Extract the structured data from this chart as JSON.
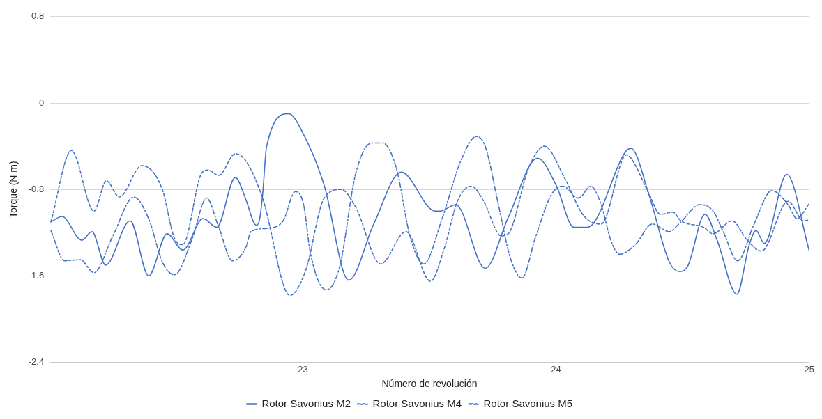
{
  "chart_data": {
    "type": "line",
    "xlabel": "Número de revolución",
    "ylabel": "Torque (N m)",
    "xlim": [
      22,
      25
    ],
    "xticks": [
      23,
      24,
      25
    ],
    "ylim": [
      -2.4,
      0.8
    ],
    "yticks": [
      0.8,
      0,
      -0.8,
      -1.6,
      -2.4
    ],
    "grid": true,
    "legend": "bottom",
    "marker": "none",
    "series": [
      {
        "name": "Rotor Savonius M2",
        "color": "#4472c4",
        "line_style": "solid",
        "x": [
          22.005,
          22.049,
          22.127,
          22.167,
          22.221,
          22.318,
          22.391,
          22.464,
          22.526,
          22.606,
          22.66,
          22.733,
          22.776,
          22.805,
          22.817,
          22.829,
          22.841,
          22.857,
          22.943,
          23.011,
          23.084,
          23.181,
          23.28,
          23.388,
          23.523,
          23.542,
          23.604,
          23.72,
          23.811,
          23.927,
          24.0,
          24.07,
          24.124,
          24.278,
          24.296,
          24.367,
          24.447,
          24.488,
          24.52,
          24.588,
          24.636,
          24.714,
          24.763,
          24.79,
          24.822,
          24.911,
          25.0
        ],
        "values": [
          -1.1,
          -1.05,
          -1.27,
          -1.19,
          -1.5,
          -1.09,
          -1.6,
          -1.21,
          -1.36,
          -1.07,
          -1.15,
          -0.69,
          -0.9,
          -1.1,
          -1.13,
          -1.08,
          -0.85,
          -0.4,
          -0.1,
          -0.33,
          -0.76,
          -1.64,
          -1.12,
          -0.64,
          -1.0,
          -1.0,
          -0.94,
          -1.53,
          -1.06,
          -0.51,
          -0.76,
          -1.15,
          -1.15,
          -0.44,
          -0.42,
          -0.85,
          -1.47,
          -1.56,
          -1.51,
          -1.03,
          -1.27,
          -1.77,
          -1.31,
          -1.18,
          -1.3,
          -0.66,
          -1.37
        ]
      },
      {
        "name": "Rotor Savonius M4",
        "color": "#4472c4",
        "line_style": "dashed",
        "x": [
          22.005,
          22.086,
          22.175,
          22.224,
          22.275,
          22.364,
          22.445,
          22.491,
          22.526,
          22.598,
          22.625,
          22.668,
          22.733,
          22.776,
          22.841,
          22.949,
          23.011,
          23.084,
          23.151,
          23.208,
          23.307,
          23.407,
          23.504,
          23.558,
          23.612,
          23.666,
          23.712,
          23.784,
          23.811,
          23.892,
          23.954,
          24.035,
          24.108,
          24.178,
          24.278,
          24.296,
          24.367,
          24.412,
          24.461,
          24.493,
          24.582,
          24.62,
          24.695,
          24.755,
          24.811,
          24.916,
          24.978,
          25.0
        ],
        "values": [
          -1.1,
          -0.44,
          -1.0,
          -0.72,
          -0.87,
          -0.58,
          -0.8,
          -1.24,
          -1.31,
          -0.66,
          -0.62,
          -0.67,
          -0.47,
          -0.54,
          -0.88,
          -1.78,
          -1.55,
          -0.88,
          -0.8,
          -0.96,
          -1.49,
          -1.19,
          -1.65,
          -1.35,
          -0.9,
          -0.77,
          -0.9,
          -1.23,
          -1.21,
          -0.6,
          -0.4,
          -0.7,
          -1.04,
          -1.12,
          -0.48,
          -0.51,
          -0.84,
          -1.03,
          -1.01,
          -1.09,
          -1.15,
          -1.21,
          -1.09,
          -1.27,
          -1.37,
          -0.91,
          -1.09,
          -1.08
        ]
      },
      {
        "name": "Rotor Savonius M5",
        "color": "#4472c4",
        "line_style": "dotted",
        "x": [
          22.005,
          22.059,
          22.121,
          22.175,
          22.248,
          22.332,
          22.391,
          22.445,
          22.493,
          22.561,
          22.62,
          22.668,
          22.722,
          22.776,
          22.795,
          22.857,
          22.922,
          22.97,
          23.003,
          23.03,
          23.092,
          23.146,
          23.208,
          23.272,
          23.315,
          23.369,
          23.423,
          23.477,
          23.55,
          23.623,
          23.685,
          23.72,
          23.774,
          23.819,
          23.865,
          23.919,
          23.981,
          24.027,
          24.089,
          24.137,
          24.178,
          24.216,
          24.251,
          24.313,
          24.38,
          24.447,
          24.485,
          24.569,
          24.62,
          24.66,
          24.717,
          24.782,
          24.852,
          24.916,
          24.951,
          25.0
        ],
        "values": [
          -1.18,
          -1.46,
          -1.45,
          -1.57,
          -1.24,
          -0.87,
          -1.07,
          -1.47,
          -1.59,
          -1.27,
          -0.88,
          -1.15,
          -1.46,
          -1.33,
          -1.19,
          -1.16,
          -1.09,
          -0.82,
          -0.94,
          -1.39,
          -1.73,
          -1.51,
          -0.66,
          -0.37,
          -0.37,
          -0.6,
          -1.23,
          -1.49,
          -1.07,
          -0.54,
          -0.31,
          -0.4,
          -0.96,
          -1.43,
          -1.62,
          -1.24,
          -0.85,
          -0.77,
          -0.88,
          -0.77,
          -0.94,
          -1.27,
          -1.4,
          -1.31,
          -1.12,
          -1.19,
          -1.12,
          -0.94,
          -1.0,
          -1.19,
          -1.46,
          -1.12,
          -0.81,
          -0.94,
          -1.07,
          -0.93
        ]
      }
    ]
  }
}
